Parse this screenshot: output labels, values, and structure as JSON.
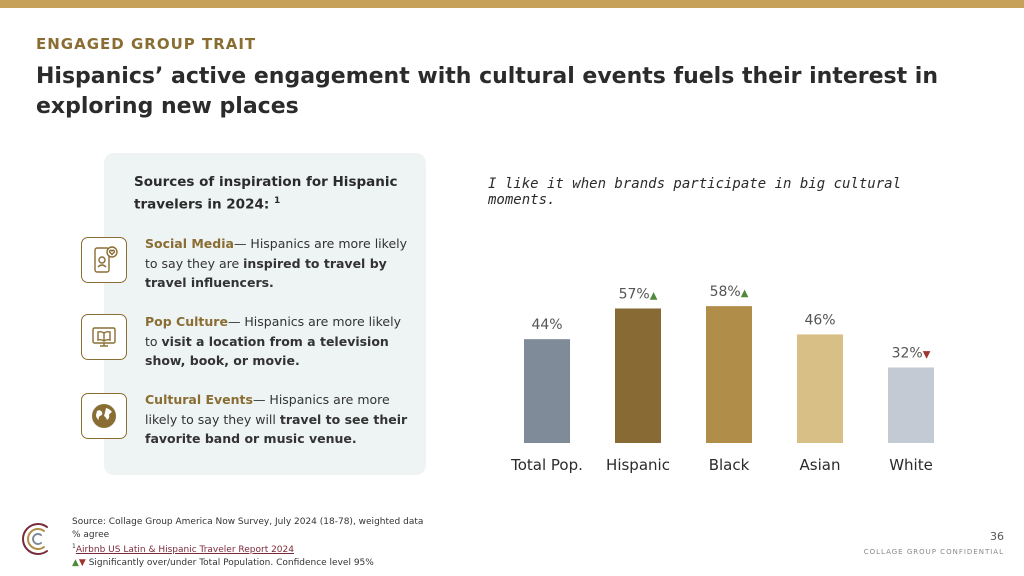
{
  "header": {
    "eyebrow": "ENGAGED GROUP TRAIT",
    "title": "Hispanics’ active engagement with cultural events fuels their interest in exploring new places"
  },
  "panel": {
    "title": "Sources of inspiration for Hispanic travelers in 2024:",
    "title_sup": "1",
    "items": [
      {
        "icon": "phone-heart-icon",
        "heading": "Social Media",
        "text_plain": "— Hispanics are more likely to say they are ",
        "text_bold": "inspired to travel by travel influencers."
      },
      {
        "icon": "tv-book-icon",
        "heading": "Pop Culture",
        "text_plain": "— Hispanics are more likely to ",
        "text_bold": "visit a location from a television show, book, or movie."
      },
      {
        "icon": "globe-icon",
        "heading": "Cultural Events",
        "text_plain": "— Hispanics are more likely to say they will ",
        "text_bold": "travel to see their favorite band or music venue."
      }
    ]
  },
  "chart_data": {
    "type": "bar",
    "title": "I like it when brands participate in big cultural moments.",
    "categories": [
      "Total Pop.",
      "Hispanic",
      "Black",
      "Asian",
      "White"
    ],
    "values": [
      44,
      57,
      58,
      46,
      32
    ],
    "value_labels": [
      "44%",
      "57%",
      "58%",
      "46%",
      "32%"
    ],
    "significance": [
      "",
      "up",
      "up",
      "",
      "down"
    ],
    "colors": [
      "#7f8b99",
      "#876a34",
      "#b08e4a",
      "#d8bf86",
      "#c3cad3"
    ],
    "ylim": [
      0,
      100
    ],
    "unit": "%",
    "grid": false,
    "legend": "none"
  },
  "footer": {
    "source": "Source: Collage Group America Now Survey, July 2024 (18-78), weighted data",
    "metric": "% agree",
    "ref_sup": "1",
    "ref": "Airbnb US Latin & Hispanic Traveler Report 2024",
    "sig_arrows": "▲▼",
    "sig_text": " Significantly over/under Total Population. Confidence level 95%",
    "page_number": "36",
    "confidential": "COLLAGE GROUP CONFIDENTIAL"
  },
  "colors": {
    "accent_gold": "#c5a15a",
    "heading_brown": "#8a6d33",
    "panel_bg": "#eef3f3",
    "sig_up": "#4f8a3a",
    "sig_down": "#a0342f"
  }
}
